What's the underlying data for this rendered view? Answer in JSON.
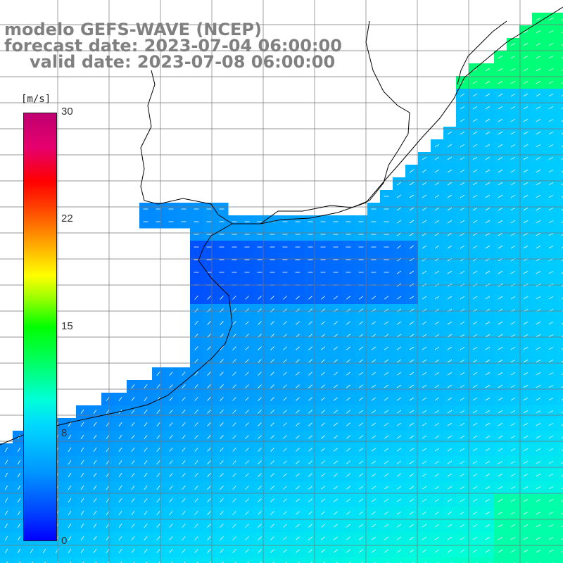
{
  "header": {
    "model_line": "modelo GEFS-WAVE (NCEP)",
    "forecast_line": "forecast date: 2023-07-04 06:00:00",
    "valid_line": "valid date: 2023-07-08 06:00:00"
  },
  "colorbar": {
    "units": "[m/s]",
    "min": 0,
    "max": 30,
    "tick_labels": [
      "30",
      "22",
      "15",
      "8",
      "0"
    ],
    "colors": {
      "low": "#0000ff",
      "mid_low": "#00d8ff",
      "mid": "#00ff00",
      "mid_high": "#ffff00",
      "high": "#ff0000",
      "top": "#c00070"
    }
  },
  "map": {
    "field": "wind speed and direction",
    "background_land": "#ffffff",
    "coastline_color": "#000000",
    "grid_color": "#777777",
    "arrow_color": "#ffffff"
  }
}
